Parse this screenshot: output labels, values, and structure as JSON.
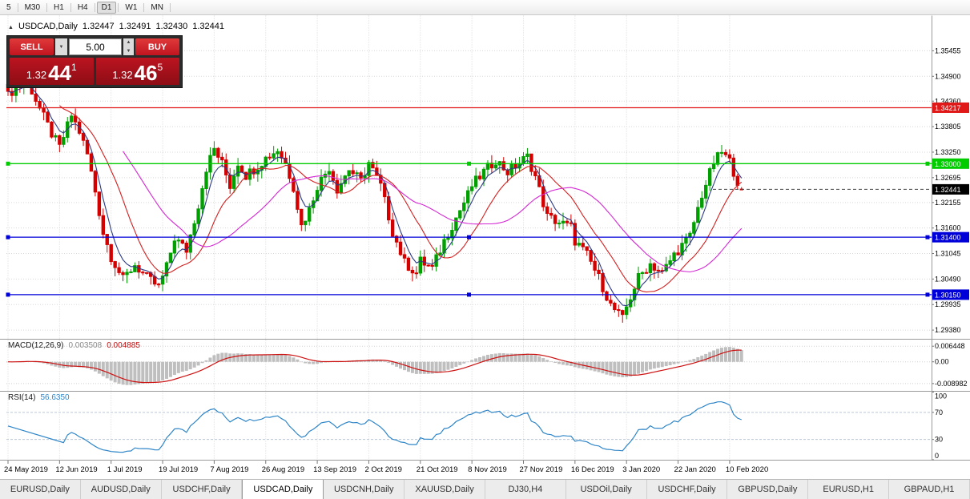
{
  "toolbar": {
    "timeframes": [
      "5",
      "M30",
      "H1",
      "H4",
      "D1",
      "W1",
      "MN"
    ],
    "active": "D1"
  },
  "chart_header": {
    "symbol": "USDCAD,Daily",
    "open": "1.32447",
    "high": "1.32491",
    "low": "1.32430",
    "close": "1.32441"
  },
  "icons": {
    "symbol_marker": "▲",
    "dropdown_down": "▼",
    "spinner_up": "▲",
    "spinner_down": "▼"
  },
  "trade_panel": {
    "sell_label": "SELL",
    "buy_label": "BUY",
    "lot_size": "5.00",
    "sell_price": {
      "prefix": "1.32",
      "big": "44",
      "sup": "1"
    },
    "buy_price": {
      "prefix": "1.32",
      "big": "46",
      "sup": "5"
    }
  },
  "macd": {
    "name": "MACD(12,26,9)",
    "value_main": "0.003508",
    "value_signal": "0.004885",
    "axis_ticks": [
      "0.006448",
      "0.00",
      "-0.008982"
    ],
    "axis_values": [
      0.006448,
      0,
      -0.008982
    ]
  },
  "rsi": {
    "name": "RSI(14)",
    "value": "56.6350",
    "axis_ticks": [
      "100",
      "70",
      "30",
      "0"
    ],
    "axis_values": [
      100,
      70,
      30,
      0
    ],
    "levels": [
      70,
      30
    ]
  },
  "tabs": {
    "items": [
      "EURUSD,Daily",
      "AUDUSD,Daily",
      "USDCHF,Daily",
      "USDCAD,Daily",
      "USDCNH,Daily",
      "XAUUSD,Daily",
      "DJ30,H4",
      "USDOil,Daily",
      "USDCHF,Daily",
      "GBPUSD,Daily",
      "EURUSD,H1",
      "GBPAUD,H1"
    ],
    "active_index": 3
  },
  "chart_data": {
    "type": "candlestick",
    "symbol": "USDCAD",
    "timeframe": "Daily",
    "last_ohlc": {
      "open": 1.32447,
      "high": 1.32491,
      "low": 1.3243,
      "close": 1.32441
    },
    "y_axis_ticks": [
      1.35455,
      1.349,
      1.3436,
      1.33805,
      1.3325,
      1.32695,
      1.32155,
      1.316,
      1.31045,
      1.3049,
      1.29935,
      1.2938
    ],
    "price_range": {
      "top": 1.3622,
      "bottom": 1.2919
    },
    "num_candles": 186,
    "close_waypoints": [
      [
        0,
        1.3448
      ],
      [
        2,
        1.3468
      ],
      [
        5,
        1.3478
      ],
      [
        8,
        1.342
      ],
      [
        11,
        1.3365
      ],
      [
        13,
        1.3335
      ],
      [
        16,
        1.3405
      ],
      [
        18,
        1.337
      ],
      [
        20,
        1.332
      ],
      [
        22,
        1.324
      ],
      [
        24,
        1.315
      ],
      [
        26,
        1.3098
      ],
      [
        29,
        1.3048
      ],
      [
        32,
        1.308
      ],
      [
        35,
        1.3052
      ],
      [
        38,
        1.3032
      ],
      [
        40,
        1.3075
      ],
      [
        42,
        1.3138
      ],
      [
        45,
        1.3112
      ],
      [
        48,
        1.321
      ],
      [
        50,
        1.329
      ],
      [
        52,
        1.3332
      ],
      [
        54,
        1.33
      ],
      [
        56,
        1.3252
      ],
      [
        58,
        1.3302
      ],
      [
        60,
        1.3275
      ],
      [
        63,
        1.3295
      ],
      [
        65,
        1.3312
      ],
      [
        68,
        1.333
      ],
      [
        70,
        1.33
      ],
      [
        72,
        1.325
      ],
      [
        74,
        1.3165
      ],
      [
        76,
        1.32
      ],
      [
        78,
        1.3252
      ],
      [
        81,
        1.3292
      ],
      [
        83,
        1.3245
      ],
      [
        86,
        1.3288
      ],
      [
        89,
        1.3262
      ],
      [
        91,
        1.3302
      ],
      [
        94,
        1.3252
      ],
      [
        97,
        1.3152
      ],
      [
        100,
        1.3085
      ],
      [
        103,
        1.3062
      ],
      [
        104,
        1.3088
      ],
      [
        107,
        1.3072
      ],
      [
        110,
        1.3132
      ],
      [
        113,
        1.3182
      ],
      [
        116,
        1.3232
      ],
      [
        117,
        1.3252
      ],
      [
        120,
        1.3282
      ],
      [
        123,
        1.3308
      ],
      [
        126,
        1.3282
      ],
      [
        129,
        1.3302
      ],
      [
        131,
        1.3315
      ],
      [
        133,
        1.3272
      ],
      [
        136,
        1.3185
      ],
      [
        139,
        1.3172
      ],
      [
        142,
        1.3162
      ],
      [
        143,
        1.3132
      ],
      [
        146,
        1.3102
      ],
      [
        149,
        1.3052
      ],
      [
        152,
        1.2992
      ],
      [
        155,
        1.2962
      ],
      [
        156,
        1.2988
      ],
      [
        159,
        1.3052
      ],
      [
        162,
        1.3082
      ],
      [
        165,
        1.3062
      ],
      [
        168,
        1.3102
      ],
      [
        169,
        1.3112
      ],
      [
        172,
        1.3142
      ],
      [
        175,
        1.3232
      ],
      [
        178,
        1.3302
      ],
      [
        180,
        1.3325
      ],
      [
        182,
        1.3305
      ],
      [
        184,
        1.3262
      ],
      [
        185,
        1.32441
      ]
    ],
    "x_ticks": [
      [
        0,
        "24 May 2019"
      ],
      [
        13,
        "12 Jun 2019"
      ],
      [
        26,
        "1 Jul 2019"
      ],
      [
        39,
        "19 Jul 2019"
      ],
      [
        52,
        "7 Aug 2019"
      ],
      [
        65,
        "26 Aug 2019"
      ],
      [
        78,
        "13 Sep 2019"
      ],
      [
        91,
        "2 Oct 2019"
      ],
      [
        104,
        "21 Oct 2019"
      ],
      [
        117,
        "8 Nov 2019"
      ],
      [
        130,
        "27 Nov 2019"
      ],
      [
        143,
        "16 Dec 2019"
      ],
      [
        156,
        "3 Jan 2020"
      ],
      [
        169,
        "22 Jan 2020"
      ],
      [
        182,
        "10 Feb 2020"
      ]
    ],
    "hlines": [
      {
        "price": 1.34217,
        "label": "1.34217",
        "color": "#e01818",
        "handles": false
      },
      {
        "price": 1.33,
        "label": "1.33000",
        "color": "#00cc00",
        "handles": true
      },
      {
        "price": 1.314,
        "label": "1.31400",
        "color": "#0000d8",
        "handles": true
      },
      {
        "price": 1.3015,
        "label": "1.30150",
        "color": "#0000d8",
        "handles": true
      }
    ],
    "current_price": {
      "value": 1.32441,
      "label": "1.32441",
      "bg": "#000000"
    },
    "moving_averages": [
      {
        "type": "ema",
        "period": 5,
        "color": "#2c3a85"
      },
      {
        "type": "sma",
        "period": 14,
        "color": "#d42020"
      },
      {
        "type": "sma",
        "period": 30,
        "color": "#d428d4"
      }
    ],
    "candle_colors": {
      "up": "#00a000",
      "down": "#d40000"
    },
    "macd_settings": {
      "fast": 12,
      "slow": 26,
      "signal": 9,
      "hist_color": "#bfbfbf",
      "signal_color": "#cc1111",
      "range": {
        "top": 0.009,
        "bottom": -0.012
      }
    },
    "rsi_settings": {
      "period": 14,
      "color": "#2f86c8",
      "range": {
        "top": 100,
        "bottom": 0
      }
    }
  }
}
